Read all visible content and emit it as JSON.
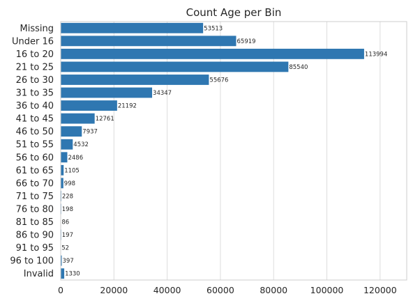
{
  "chart_data": {
    "type": "bar",
    "orientation": "horizontal",
    "title": "Count Age per Bin",
    "xlabel": "",
    "ylabel": "",
    "categories": [
      "Missing",
      "Under 16",
      "16 to 20",
      "21 to 25",
      "26 to 30",
      "31 to 35",
      "36 to 40",
      "41 to 45",
      "46 to 50",
      "51 to 55",
      "56 to 60",
      "61 to 65",
      "66 to 70",
      "71 to 75",
      "76 to 80",
      "81 to 85",
      "86 to 90",
      "91 to 95",
      "96 to 100",
      "Invalid"
    ],
    "values": [
      53513,
      65919,
      113994,
      85540,
      55676,
      34347,
      21192,
      12761,
      7937,
      4532,
      2486,
      1105,
      998,
      228,
      198,
      86,
      197,
      52,
      397,
      1330
    ],
    "data_labels": [
      "53513",
      "65919",
      "113994",
      "85540",
      "55676",
      "34347",
      "21192",
      "12761",
      "7937",
      "4532",
      "2486",
      "1105",
      "998",
      "228",
      "198",
      "86",
      "197",
      "52",
      "397",
      "1330"
    ],
    "xlim": [
      0,
      130000
    ],
    "xticks": [
      0,
      20000,
      40000,
      60000,
      80000,
      100000,
      120000
    ],
    "xtick_labels": [
      "0",
      "20000",
      "40000",
      "60000",
      "80000",
      "100000",
      "120000"
    ],
    "grid": "vertical",
    "legend": "none",
    "bar_color": "#2f77b1",
    "grid_color": "#dcdcdc",
    "spine_color": "#cccccc",
    "text_color": "#262626"
  }
}
